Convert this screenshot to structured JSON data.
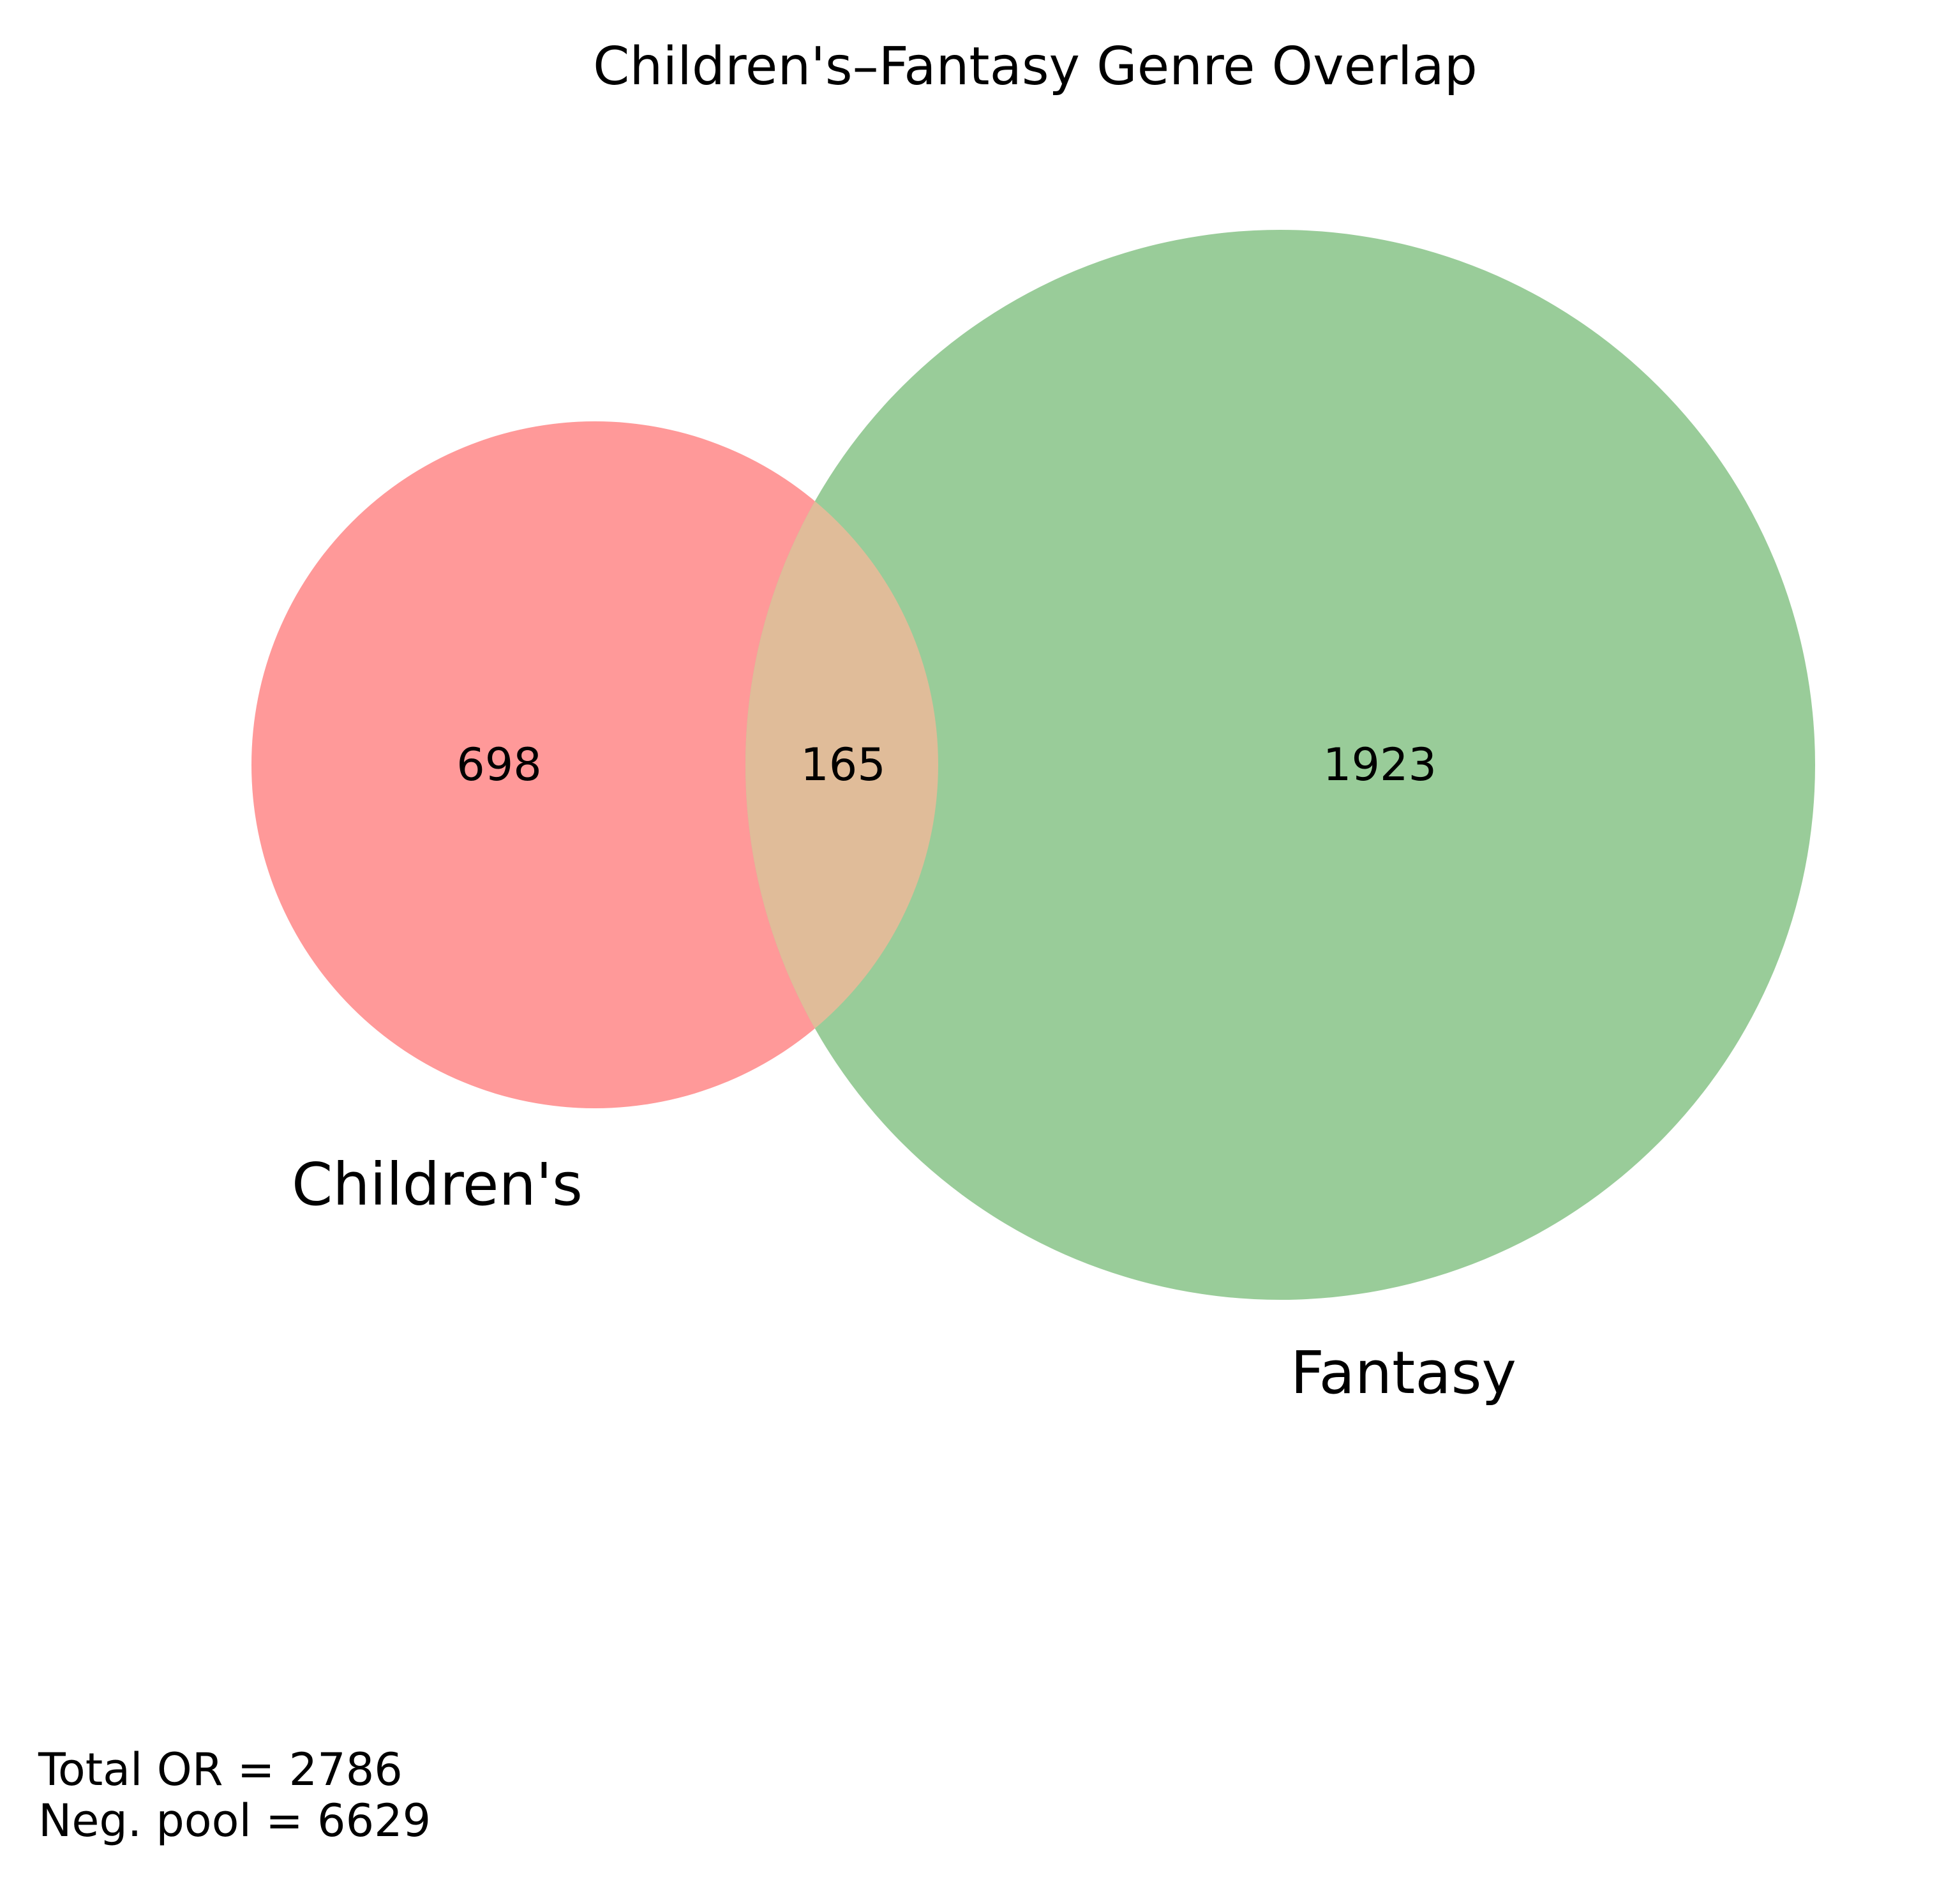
{
  "title": "Children's–Fantasy Genre Overlap",
  "sets": [
    {
      "key": "a",
      "label": "Children's",
      "color": "#ff9999"
    },
    {
      "key": "b",
      "label": "Fantasy",
      "color": "#99cc99"
    }
  ],
  "intersection_color": "#e0bc99",
  "regions": {
    "a_only": "698",
    "both": "165",
    "b_only": "1923"
  },
  "footer": {
    "total": "Total OR = 2786",
    "neg_pool": "Neg. pool = 6629"
  }
}
